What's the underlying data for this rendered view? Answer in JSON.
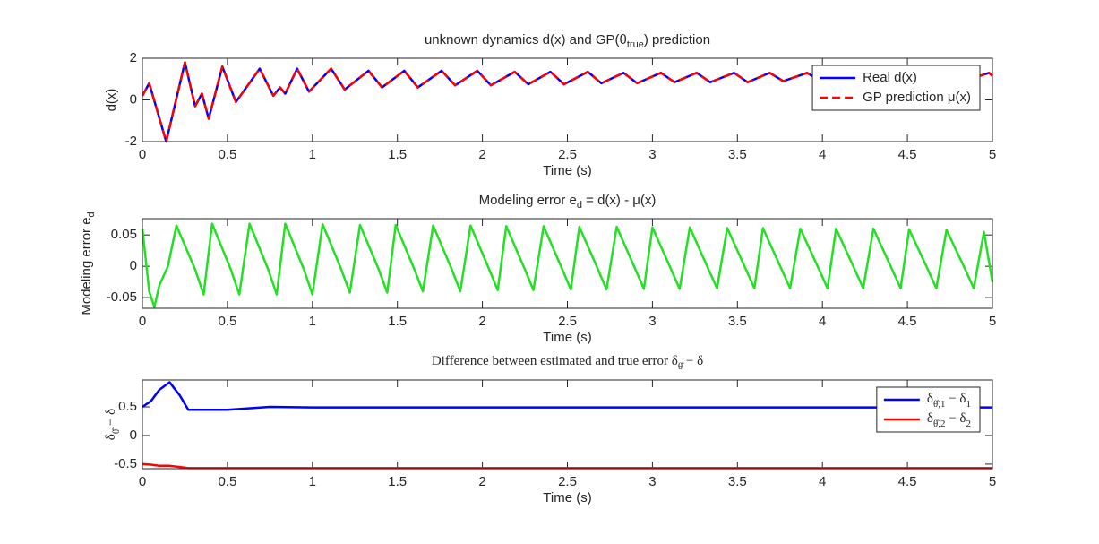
{
  "chart_data": [
    {
      "type": "line",
      "title": [
        "unknown dynamics d(x) and GP(θ",
        {
          "sub": "true"
        },
        ") prediction"
      ],
      "xlabel": "Time (s)",
      "ylabel": "d(x)",
      "xlim": [
        0,
        5
      ],
      "xticks": [
        0,
        0.5,
        1,
        1.5,
        2,
        2.5,
        3,
        3.5,
        4,
        4.5,
        5
      ],
      "ylim": [
        -2,
        2
      ],
      "yticks": [
        -2,
        0,
        2
      ],
      "legend": "upper right",
      "x": [
        0,
        0.04,
        0.14,
        0.25,
        0.31,
        0.35,
        0.39,
        0.47,
        0.55,
        0.69,
        0.77,
        0.81,
        0.84,
        0.91,
        0.98,
        1.11,
        1.19,
        1.33,
        1.41,
        1.54,
        1.62,
        1.76,
        1.84,
        1.97,
        2.05,
        2.19,
        2.27,
        2.4,
        2.48,
        2.62,
        2.7,
        2.83,
        2.91,
        3.05,
        3.13,
        3.26,
        3.34,
        3.48,
        3.56,
        3.69,
        3.77,
        3.91,
        3.99,
        4.12,
        4.2,
        4.34,
        4.42,
        4.55,
        4.63,
        4.77,
        4.85,
        4.98,
        5.0
      ],
      "series": [
        {
          "name": "Real d(x)",
          "color": "#0000ff",
          "dash": "solid",
          "values": [
            0.2,
            0.8,
            -2.0,
            1.8,
            -0.3,
            0.3,
            -0.9,
            1.6,
            -0.1,
            1.5,
            0.2,
            0.6,
            0.3,
            1.5,
            0.4,
            1.5,
            0.5,
            1.4,
            0.6,
            1.4,
            0.6,
            1.4,
            0.7,
            1.4,
            0.7,
            1.35,
            0.75,
            1.35,
            0.75,
            1.35,
            0.8,
            1.3,
            0.8,
            1.3,
            0.85,
            1.3,
            0.85,
            1.3,
            0.85,
            1.3,
            0.9,
            1.3,
            0.9,
            1.25,
            0.9,
            1.25,
            0.9,
            1.25,
            0.95,
            1.25,
            0.95,
            1.3,
            1.15
          ]
        },
        {
          "name": [
            "GP prediction μ(x)"
          ],
          "color": "#ff0000",
          "dash": "dashed",
          "values": [
            0.2,
            0.8,
            -2.0,
            1.8,
            -0.3,
            0.3,
            -0.9,
            1.6,
            -0.1,
            1.5,
            0.2,
            0.6,
            0.3,
            1.5,
            0.4,
            1.5,
            0.5,
            1.4,
            0.6,
            1.4,
            0.6,
            1.4,
            0.7,
            1.4,
            0.7,
            1.35,
            0.75,
            1.35,
            0.75,
            1.35,
            0.8,
            1.3,
            0.8,
            1.3,
            0.85,
            1.3,
            0.85,
            1.3,
            0.85,
            1.3,
            0.9,
            1.3,
            0.9,
            1.25,
            0.9,
            1.25,
            0.9,
            1.25,
            0.95,
            1.25,
            0.95,
            1.3,
            1.15
          ]
        }
      ]
    },
    {
      "type": "line",
      "title": [
        "Modeling error e",
        {
          "sub": "d"
        },
        " = d(x) - μ(x)"
      ],
      "xlabel": "Time (s)",
      "ylabel": [
        "Modeling error e",
        {
          "sub": "d"
        }
      ],
      "xlim": [
        0,
        5
      ],
      "xticks": [
        0,
        0.5,
        1,
        1.5,
        2,
        2.5,
        3,
        3.5,
        4,
        4.5,
        5
      ],
      "ylim": [
        -0.067,
        0.076
      ],
      "yticks": [
        -0.05,
        0,
        0.05
      ],
      "x": [
        0,
        0.04,
        0.07,
        0.1,
        0.15,
        0.2,
        0.31,
        0.36,
        0.41,
        0.52,
        0.57,
        0.63,
        0.74,
        0.79,
        0.84,
        0.95,
        1.0,
        1.06,
        1.17,
        1.22,
        1.28,
        1.39,
        1.44,
        1.49,
        1.6,
        1.65,
        1.71,
        1.82,
        1.87,
        1.93,
        2.04,
        2.09,
        2.14,
        2.25,
        2.3,
        2.36,
        2.47,
        2.52,
        2.57,
        2.68,
        2.73,
        2.79,
        2.9,
        2.95,
        3.0,
        3.11,
        3.16,
        3.22,
        3.33,
        3.38,
        3.44,
        3.55,
        3.6,
        3.65,
        3.76,
        3.81,
        3.87,
        3.98,
        4.03,
        4.08,
        4.19,
        4.24,
        4.3,
        4.41,
        4.46,
        4.51,
        4.62,
        4.67,
        4.73,
        4.84,
        4.89,
        4.95,
        5.0
      ],
      "series": [
        {
          "color": "#22e022",
          "dash": "solid",
          "values": [
            0.06,
            -0.04,
            -0.065,
            -0.03,
            0.0,
            0.065,
            -0.005,
            -0.045,
            0.068,
            -0.005,
            -0.045,
            0.068,
            -0.005,
            -0.045,
            0.068,
            -0.005,
            -0.045,
            0.067,
            -0.005,
            -0.042,
            0.066,
            -0.005,
            -0.042,
            0.066,
            -0.005,
            -0.04,
            0.065,
            -0.005,
            -0.04,
            0.065,
            -0.005,
            -0.038,
            0.064,
            -0.005,
            -0.038,
            0.064,
            -0.005,
            -0.037,
            0.063,
            -0.005,
            -0.037,
            0.063,
            -0.005,
            -0.036,
            0.062,
            -0.005,
            -0.036,
            0.062,
            -0.005,
            -0.035,
            0.061,
            -0.005,
            -0.035,
            0.061,
            -0.005,
            -0.035,
            0.06,
            -0.005,
            -0.035,
            0.06,
            -0.005,
            -0.035,
            0.06,
            -0.005,
            -0.035,
            0.059,
            -0.005,
            -0.035,
            0.058,
            -0.005,
            -0.035,
            0.055,
            -0.025
          ]
        }
      ]
    },
    {
      "type": "line",
      "text_style": "serif",
      "title": [
        "Difference between estimated and true error δ",
        {
          "sub": "θ̂"
        },
        " − δ"
      ],
      "xlabel": "Time (s)",
      "ylabel": [
        "δ",
        {
          "sub": "θ̂"
        },
        " − δ"
      ],
      "xlim": [
        0,
        5
      ],
      "xticks": [
        0,
        0.5,
        1,
        1.5,
        2,
        2.5,
        3,
        3.5,
        4,
        4.5,
        5
      ],
      "ylim": [
        -0.58,
        0.97
      ],
      "yticks": [
        -0.5,
        0,
        0.5
      ],
      "legend": "upper right",
      "x": [
        0,
        0.05,
        0.1,
        0.16,
        0.22,
        0.27,
        0.5,
        0.75,
        1,
        5
      ],
      "series": [
        {
          "name": [
            "δ",
            {
              "sub": "θ̂,1"
            },
            " − δ",
            {
              "sub": "1"
            }
          ],
          "color": "#0000ff",
          "dash": "solid",
          "values": [
            0.5,
            0.6,
            0.8,
            0.93,
            0.7,
            0.45,
            0.45,
            0.5,
            0.49,
            0.49
          ]
        },
        {
          "name": [
            "δ",
            {
              "sub": "θ̂,2"
            },
            " − δ",
            {
              "sub": "2"
            }
          ],
          "color": "#ff0000",
          "dash": "solid",
          "values": [
            -0.5,
            -0.51,
            -0.53,
            -0.53,
            -0.55,
            -0.57,
            -0.57,
            -0.57,
            -0.57,
            -0.57
          ]
        }
      ]
    }
  ]
}
